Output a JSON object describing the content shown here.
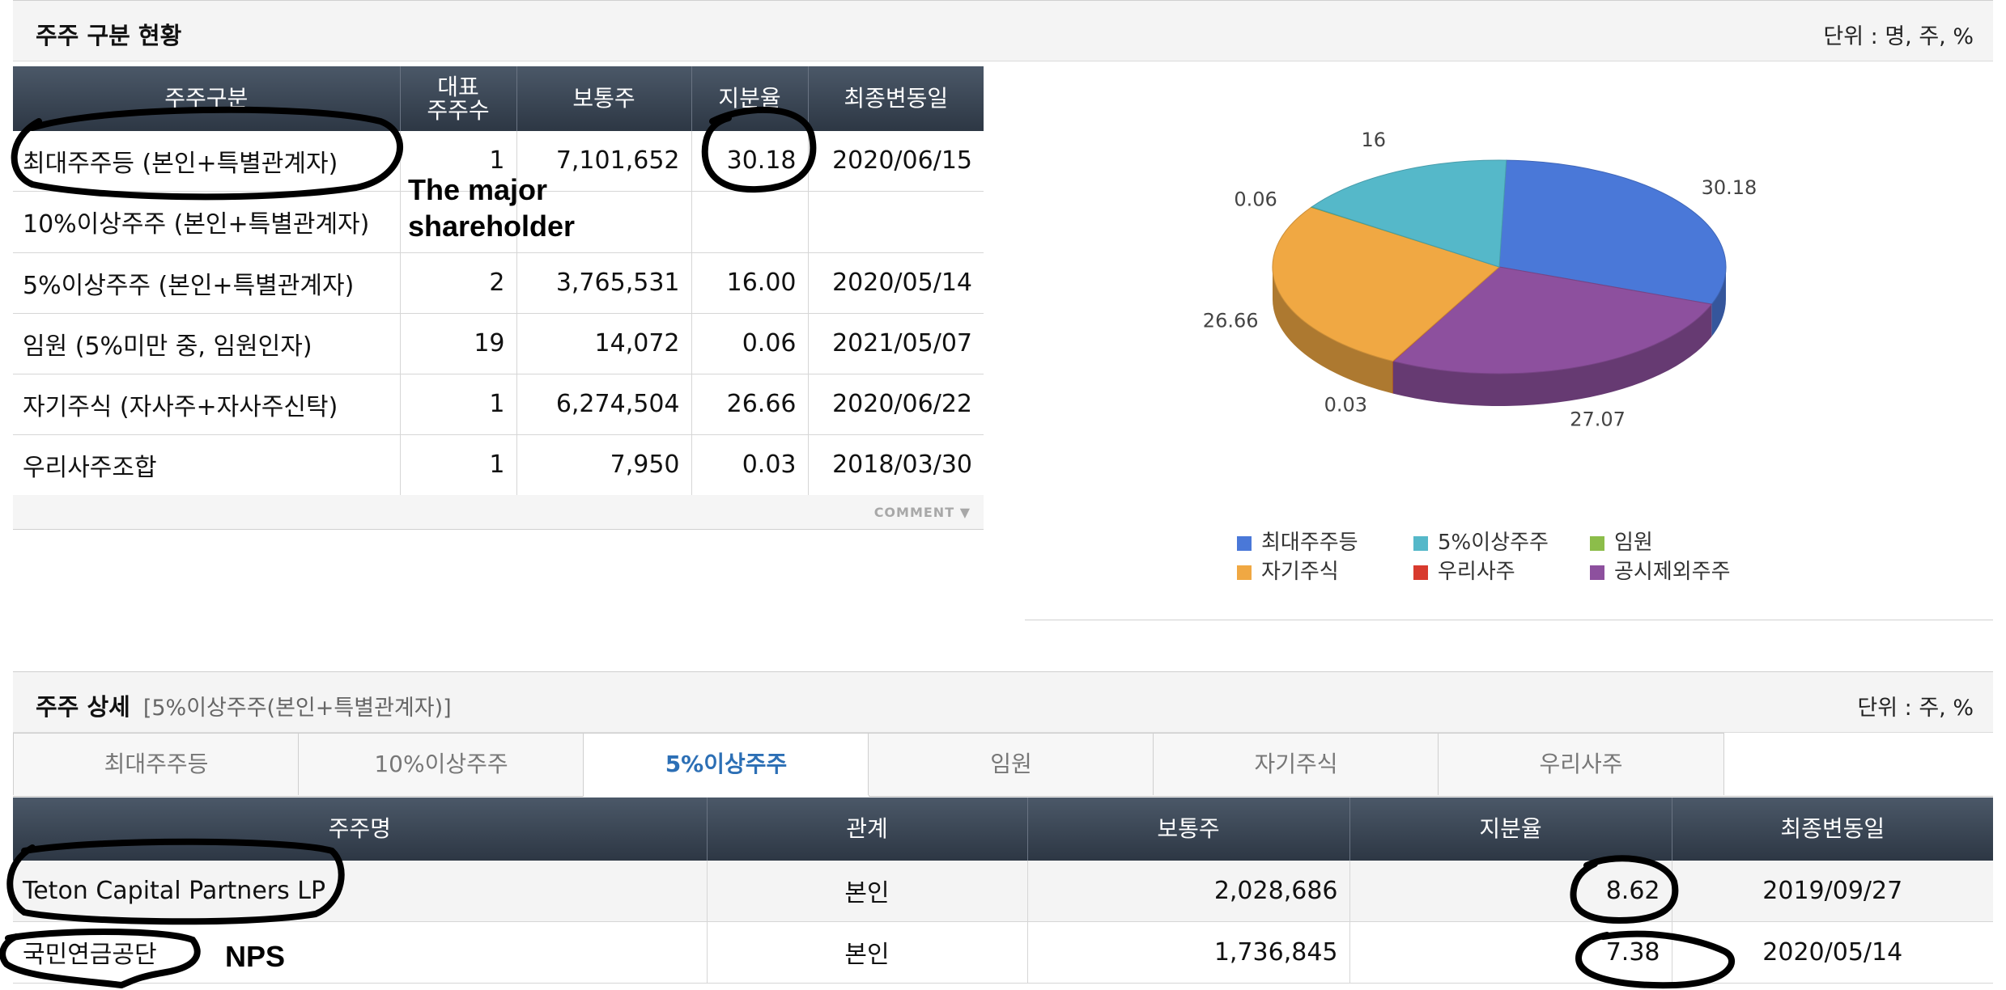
{
  "summary": {
    "title": "주주 구분 현황",
    "unit": "단위 : 명, 주, %",
    "headers": {
      "category": "주주구분",
      "holders": "대표\n주주수",
      "common": "보통주",
      "ratio": "지분율",
      "date": "최종변동일"
    },
    "rows": [
      {
        "category": "최대주주등 (본인+특별관계자)",
        "holders": "1",
        "common": "7,101,652",
        "ratio": "30.18",
        "date": "2020/06/15"
      },
      {
        "category": "10%이상주주 (본인+특별관계자)",
        "holders": "",
        "common": "",
        "ratio": "",
        "date": ""
      },
      {
        "category": "5%이상주주 (본인+특별관계자)",
        "holders": "2",
        "common": "3,765,531",
        "ratio": "16.00",
        "date": "2020/05/14"
      },
      {
        "category": "임원 (5%미만 중, 임원인자)",
        "holders": "19",
        "common": "14,072",
        "ratio": "0.06",
        "date": "2021/05/07"
      },
      {
        "category": "자기주식 (자사주+자사주신탁)",
        "holders": "1",
        "common": "6,274,504",
        "ratio": "26.66",
        "date": "2020/06/22"
      },
      {
        "category": "우리사주조합",
        "holders": "1",
        "common": "7,950",
        "ratio": "0.03",
        "date": "2018/03/30"
      }
    ],
    "comment_label": "COMMENT"
  },
  "chart_data": {
    "type": "pie",
    "title": "",
    "slices": [
      {
        "label": "최대주주등",
        "value": 30.18,
        "display": "30.18",
        "color": "#4a78d8"
      },
      {
        "label": "5%이상주주",
        "value": 16.0,
        "display": "16",
        "color": "#55b8c9"
      },
      {
        "label": "임원",
        "value": 0.06,
        "display": "0.06",
        "color": "#8cbd4a"
      },
      {
        "label": "자기주식",
        "value": 26.66,
        "display": "26.66",
        "color": "#f0a843"
      },
      {
        "label": "우리사주",
        "value": 0.03,
        "display": "0.03",
        "color": "#d83a2e"
      },
      {
        "label": "공시제외주주",
        "value": 27.07,
        "display": "27.07",
        "color": "#8d509e"
      }
    ],
    "legend_placement": "bottom"
  },
  "detail": {
    "title": "주주 상세",
    "subtitle": "[5%이상주주(본인+특별관계자)]",
    "unit": "단위 : 주, %",
    "tabs": [
      "최대주주등",
      "10%이상주주",
      "5%이상주주",
      "임원",
      "자기주식",
      "우리사주"
    ],
    "active_tab": "5%이상주주",
    "headers": {
      "name": "주주명",
      "relation": "관계",
      "common": "보통주",
      "ratio": "지분율",
      "date": "최종변동일"
    },
    "rows": [
      {
        "name": "Teton Capital Partners LP",
        "relation": "본인",
        "common": "2,028,686",
        "ratio": "8.62",
        "date": "2019/09/27"
      },
      {
        "name": "국민연금공단",
        "relation": "본인",
        "common": "1,736,845",
        "ratio": "7.38",
        "date": "2020/05/14"
      }
    ]
  },
  "annotations": {
    "major": "The major\nshareholder",
    "nps": "NPS"
  }
}
